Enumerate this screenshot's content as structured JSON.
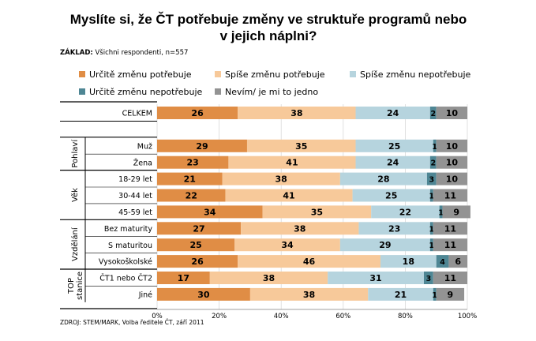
{
  "title_line1": "Myslíte si, že ČT potřebuje změny ve struktuře programů nebo",
  "title_line2": "v jejich náplni?",
  "basis_label": "ZÁKLAD:",
  "basis_text": "Všichni respondenti, n=557",
  "source": "ZDROJ: STEM/MARK, Volba ředitele ČT, září 2011",
  "colors": [
    "#e08d45",
    "#f7c99a",
    "#b6d4de",
    "#4e8694",
    "#939393"
  ],
  "legend": [
    "Určitě změnu potřebuje",
    "Spíše změnu potřebuje",
    "Spíše změnu nepotřebuje",
    "Určitě změnu nepotřebuje",
    "Nevím/ je mi to jedno"
  ],
  "chart_data": {
    "type": "bar",
    "orientation": "horizontal",
    "stacked": true,
    "title": "Myslíte si, že ČT potřebuje změny ve struktuře programů nebo v jejich náplni?",
    "xlim": [
      0,
      100
    ],
    "x_ticks": [
      "0%",
      "20%",
      "40%",
      "60%",
      "80%",
      "100%"
    ],
    "series_names": [
      "Určitě změnu potřebuje",
      "Spíše změnu potřebuje",
      "Spíše změnu nepotřebuje",
      "Určitě změnu nepotřebuje",
      "Nevím/ je mi to jedno"
    ],
    "groups": [
      {
        "label": "",
        "rows": [
          {
            "label": "CELKEM",
            "values": [
              26,
              38,
              24,
              2,
              10
            ]
          }
        ]
      },
      {
        "label": "Pohlaví",
        "rows": [
          {
            "label": "Muž",
            "values": [
              29,
              35,
              25,
              1,
              10
            ]
          },
          {
            "label": "Žena",
            "values": [
              23,
              41,
              24,
              2,
              10
            ]
          }
        ]
      },
      {
        "label": "Věk",
        "rows": [
          {
            "label": "18-29 let",
            "values": [
              21,
              38,
              28,
              3,
              10
            ]
          },
          {
            "label": "30-44 let",
            "values": [
              22,
              41,
              25,
              1,
              11
            ]
          },
          {
            "label": "45-59 let",
            "values": [
              34,
              35,
              22,
              1,
              9
            ]
          }
        ]
      },
      {
        "label": "Vzdělání",
        "rows": [
          {
            "label": "Bez maturity",
            "values": [
              27,
              38,
              23,
              1,
              11
            ]
          },
          {
            "label": "S maturitou",
            "values": [
              25,
              34,
              29,
              1,
              11
            ]
          },
          {
            "label": "Vysokoškolské",
            "values": [
              26,
              46,
              18,
              4,
              6
            ]
          }
        ]
      },
      {
        "label": "TOP stanice",
        "rows": [
          {
            "label": "ČT1 nebo ČT2",
            "values": [
              17,
              38,
              31,
              3,
              11
            ]
          },
          {
            "label": "Jiné",
            "values": [
              30,
              38,
              21,
              1,
              9
            ]
          }
        ]
      }
    ]
  }
}
